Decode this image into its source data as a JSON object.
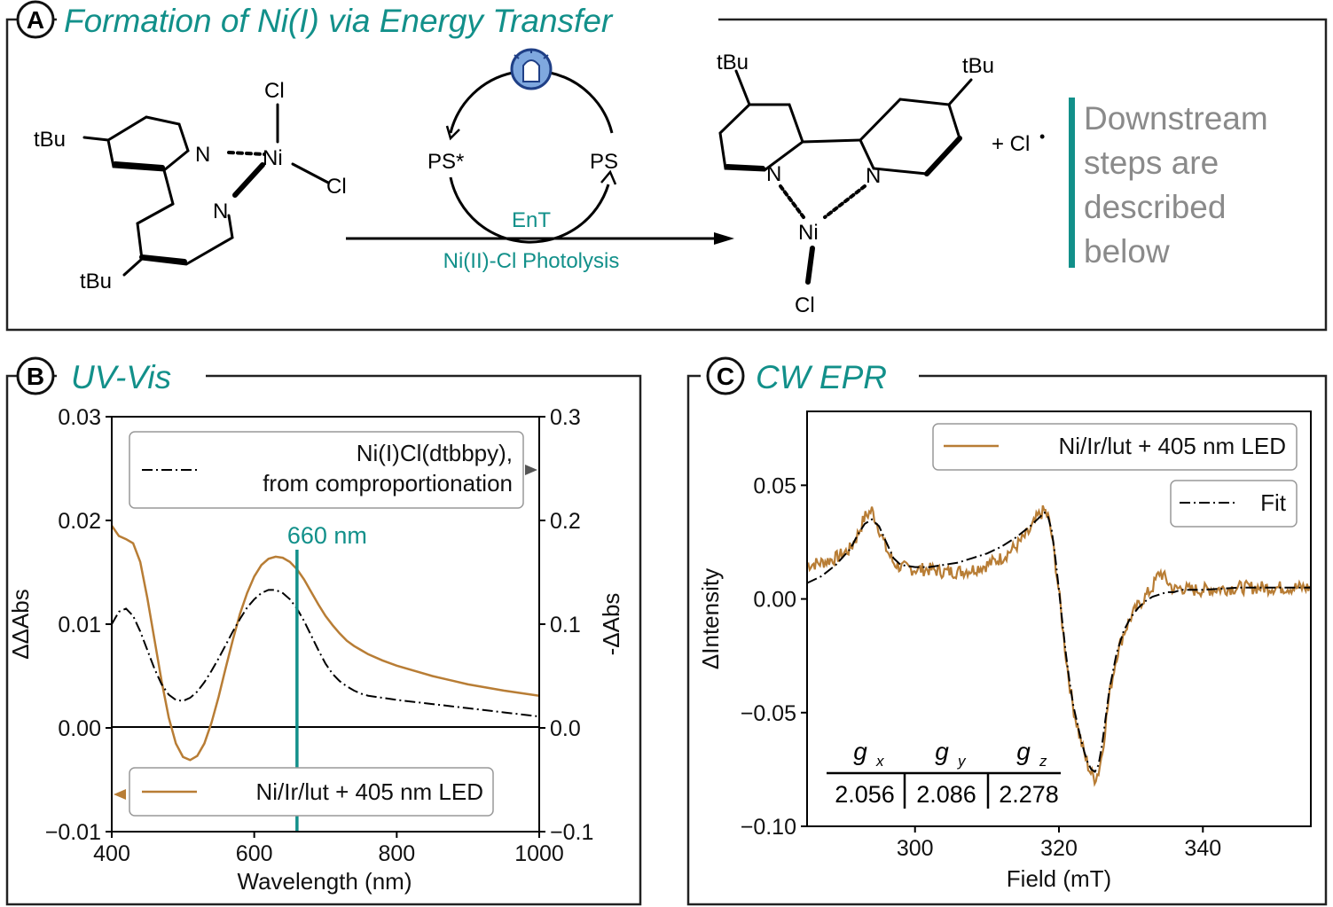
{
  "colors": {
    "teal": "#12908a",
    "orange": "#b87d35",
    "gray": "#8a8a8a"
  },
  "panel_a": {
    "letter": "A",
    "title": "Formation of Ni(I) via Energy Transfer",
    "reactant_labels": {
      "tbu_top": "tBu",
      "tbu_bottom": "tBu",
      "n1": "N",
      "n2": "N",
      "ni": "Ni",
      "cl1": "Cl",
      "cl2": "Cl"
    },
    "cycle": {
      "ps_star": "PS*",
      "ps": "PS",
      "ent": "EnT",
      "icon": "led-bulb-icon"
    },
    "arrow_label": "Ni(II)-Cl Photolysis",
    "product_labels": {
      "tbu_left": "tBu",
      "tbu_right": "tBu",
      "n1": "N",
      "n2": "N",
      "ni": "Ni",
      "cl": "Cl"
    },
    "byproduct": "+ Cl",
    "radical_dot": "•",
    "note": [
      "Downstream",
      "steps are",
      "described",
      "below"
    ]
  },
  "panel_b": {
    "letter": "B",
    "title": "UV-Vis"
  },
  "panel_c": {
    "letter": "C",
    "title": "CW EPR"
  },
  "chart_data": [
    {
      "id": "uvvis",
      "type": "line",
      "xlabel": "Wavelength (nm)",
      "ylabel": "ΔΔAbs",
      "y2label": "-ΔAbs",
      "xlim": [
        400,
        1000
      ],
      "ylim": [
        -0.01,
        0.03
      ],
      "y2lim": [
        -0.1,
        0.3
      ],
      "xticks": [
        400,
        600,
        800,
        1000
      ],
      "xtick_labels": [
        "400",
        "600",
        "800",
        "1000"
      ],
      "yticks": [
        -0.01,
        0.0,
        0.01,
        0.02,
        0.03
      ],
      "ytick_labels": [
        "−0.01",
        "0.00",
        "0.01",
        "0.02",
        "0.03"
      ],
      "y2ticks": [
        -0.1,
        0.0,
        0.1,
        0.2,
        0.3
      ],
      "y2tick_labels": [
        "−0.1",
        "0.0",
        "0.1",
        "0.2",
        "0.3"
      ],
      "vline": {
        "x": 660,
        "label": "660 nm"
      },
      "series": [
        {
          "name": "Ni/Ir/lut + 405 nm LED",
          "axis": "left",
          "x": [
            400,
            410,
            420,
            430,
            440,
            450,
            460,
            470,
            480,
            490,
            500,
            510,
            520,
            530,
            540,
            550,
            560,
            570,
            580,
            590,
            600,
            610,
            620,
            630,
            640,
            650,
            660,
            670,
            680,
            690,
            700,
            710,
            720,
            730,
            740,
            750,
            760,
            780,
            800,
            850,
            900,
            950,
            1000
          ],
          "y": [
            0.0195,
            0.0185,
            0.0182,
            0.0178,
            0.016,
            0.0125,
            0.0085,
            0.0045,
            0.001,
            -0.0015,
            -0.0028,
            -0.0031,
            -0.0027,
            -0.0015,
            0.0005,
            0.003,
            0.0058,
            0.0085,
            0.011,
            0.013,
            0.0146,
            0.0157,
            0.0163,
            0.0165,
            0.0164,
            0.016,
            0.0153,
            0.0143,
            0.0131,
            0.0119,
            0.0108,
            0.0099,
            0.0091,
            0.0084,
            0.0079,
            0.0075,
            0.0071,
            0.0065,
            0.006,
            0.005,
            0.0042,
            0.0036,
            0.0031
          ]
        },
        {
          "name": "Ni(I)Cl(dtbbpy), from comproportionation",
          "legend_lines": [
            "Ni(I)Cl(dtbbpy),",
            "from comproportionation"
          ],
          "axis": "right",
          "x": [
            400,
            410,
            420,
            430,
            440,
            450,
            460,
            470,
            480,
            490,
            500,
            510,
            520,
            530,
            540,
            550,
            560,
            570,
            580,
            590,
            600,
            610,
            620,
            630,
            640,
            650,
            660,
            670,
            680,
            690,
            700,
            710,
            720,
            730,
            740,
            750,
            760,
            780,
            800,
            850,
            900,
            950,
            1000
          ],
          "y": [
            0.1,
            0.112,
            0.115,
            0.108,
            0.093,
            0.075,
            0.057,
            0.042,
            0.032,
            0.027,
            0.026,
            0.029,
            0.035,
            0.044,
            0.055,
            0.067,
            0.08,
            0.093,
            0.105,
            0.116,
            0.124,
            0.13,
            0.133,
            0.133,
            0.13,
            0.124,
            0.115,
            0.103,
            0.089,
            0.075,
            0.062,
            0.052,
            0.045,
            0.04,
            0.036,
            0.033,
            0.031,
            0.029,
            0.027,
            0.023,
            0.019,
            0.015,
            0.011
          ]
        }
      ]
    },
    {
      "id": "epr",
      "type": "line",
      "xlabel": "Field (mT)",
      "ylabel": "ΔIntensity",
      "xlim": [
        285,
        355
      ],
      "ylim": [
        -0.1,
        0.0825
      ],
      "xticks": [
        300,
        320,
        340
      ],
      "xtick_labels": [
        "300",
        "320",
        "340"
      ],
      "yticks": [
        -0.1,
        -0.05,
        0.0,
        0.05
      ],
      "ytick_labels": [
        "−0.10",
        "−0.05",
        "0.00",
        "0.05"
      ],
      "g_table": {
        "headers": [
          "g",
          "g",
          "g"
        ],
        "subscripts": [
          "x",
          "y",
          "z"
        ],
        "values": [
          "2.056",
          "2.086",
          "2.278"
        ]
      },
      "series": [
        {
          "name": "Ni/Ir/lut + 405 nm LED",
          "x": [
            285,
            287,
            289,
            291,
            292,
            293,
            294,
            295,
            296,
            297,
            298,
            300,
            302,
            304,
            306,
            308,
            310,
            312,
            314,
            316,
            317,
            318,
            318.5,
            319,
            319.5,
            320,
            320.5,
            321,
            321.5,
            322,
            322.5,
            323,
            323.5,
            324,
            324.5,
            325,
            325.5,
            326,
            326.5,
            327,
            328,
            329,
            330,
            331,
            332,
            333,
            334,
            335,
            336,
            337,
            338,
            340,
            345,
            350,
            355
          ],
          "y": [
            0.015,
            0.016,
            0.018,
            0.022,
            0.028,
            0.036,
            0.039,
            0.031,
            0.022,
            0.016,
            0.014,
            0.013,
            0.013,
            0.012,
            0.012,
            0.013,
            0.015,
            0.018,
            0.023,
            0.03,
            0.036,
            0.039,
            0.036,
            0.028,
            0.016,
            0.003,
            -0.012,
            -0.026,
            -0.038,
            -0.048,
            -0.055,
            -0.062,
            -0.068,
            -0.073,
            -0.077,
            -0.079,
            -0.076,
            -0.068,
            -0.055,
            -0.042,
            -0.025,
            -0.015,
            -0.008,
            -0.003,
            0.001,
            0.005,
            0.012,
            0.008,
            0.004,
            0.005,
            0.004,
            0.004,
            0.005,
            0.005,
            0.005
          ]
        },
        {
          "name": "Fit",
          "x": [
            285,
            287,
            289,
            291,
            292,
            293,
            294,
            295,
            296,
            297,
            298,
            300,
            302,
            304,
            306,
            308,
            310,
            312,
            314,
            316,
            317,
            318,
            318.5,
            319,
            319.5,
            320,
            320.5,
            321,
            321.5,
            322,
            322.5,
            323,
            323.5,
            324,
            324.5,
            325,
            325.5,
            326,
            326.5,
            327,
            328,
            329,
            330,
            331,
            332,
            333,
            334,
            335,
            336,
            337,
            338,
            340,
            345,
            350,
            355
          ],
          "y": [
            0.007,
            0.01,
            0.015,
            0.022,
            0.028,
            0.033,
            0.035,
            0.032,
            0.025,
            0.018,
            0.015,
            0.014,
            0.014,
            0.015,
            0.016,
            0.018,
            0.02,
            0.023,
            0.027,
            0.032,
            0.035,
            0.038,
            0.036,
            0.03,
            0.018,
            0.004,
            -0.011,
            -0.025,
            -0.037,
            -0.047,
            -0.054,
            -0.061,
            -0.067,
            -0.072,
            -0.075,
            -0.076,
            -0.073,
            -0.064,
            -0.052,
            -0.04,
            -0.024,
            -0.014,
            -0.008,
            -0.004,
            -0.001,
            0.001,
            0.002,
            0.003,
            0.003,
            0.004,
            0.004,
            0.004,
            0.005,
            0.005,
            0.005
          ]
        }
      ]
    }
  ]
}
